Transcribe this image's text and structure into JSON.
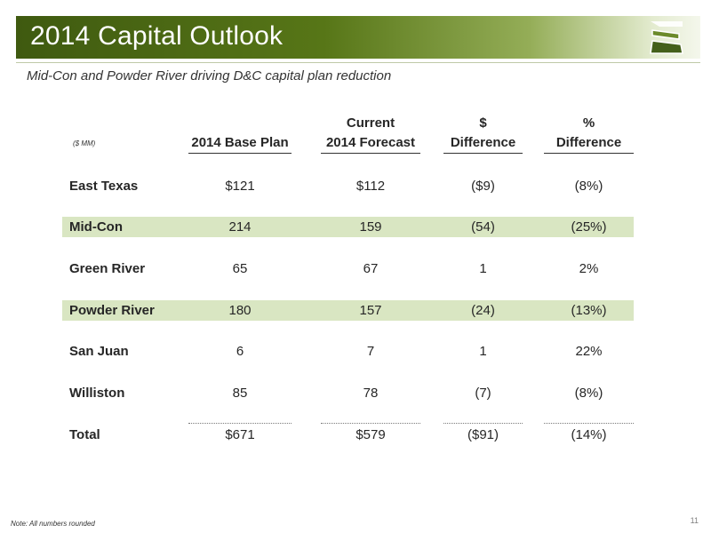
{
  "header": {
    "title": "2014 Capital Outlook",
    "subtitle": "Mid-Con and Powder River driving D&C capital plan reduction",
    "logo_icon": "stylized-s-logo-icon"
  },
  "table": {
    "units": "($ MM)",
    "columns": [
      {
        "line1": "",
        "line2": "2014 Base Plan"
      },
      {
        "line1": "Current",
        "line2": "2014 Forecast"
      },
      {
        "line1": "$",
        "line2": "Difference"
      },
      {
        "line1": "%",
        "line2": "Difference"
      }
    ],
    "rows": [
      {
        "label": "East Texas",
        "cells": [
          "$121",
          "$112",
          "($9)",
          "(8%)"
        ],
        "highlighted": false
      },
      {
        "label": "Mid-Con",
        "cells": [
          "214",
          "159",
          "(54)",
          "(25%)"
        ],
        "highlighted": true
      },
      {
        "label": "Green River",
        "cells": [
          "65",
          "67",
          "1",
          "2%"
        ],
        "highlighted": false
      },
      {
        "label": "Powder River",
        "cells": [
          "180",
          "157",
          "(24)",
          "(13%)"
        ],
        "highlighted": true
      },
      {
        "label": "San Juan",
        "cells": [
          "6",
          "7",
          "1",
          "22%"
        ],
        "highlighted": false
      },
      {
        "label": "Williston",
        "cells": [
          "85",
          "78",
          "(7)",
          "(8%)"
        ],
        "highlighted": false
      },
      {
        "label": "Total",
        "cells": [
          "$671",
          "$579",
          "($91)",
          "(14%)"
        ],
        "highlighted": false
      }
    ]
  },
  "footer": {
    "note": "Note:  All numbers rounded",
    "page_number": "11"
  },
  "colors": {
    "title_bar_dark": "#3f5a10",
    "highlight_band": "#d9e6c2"
  }
}
